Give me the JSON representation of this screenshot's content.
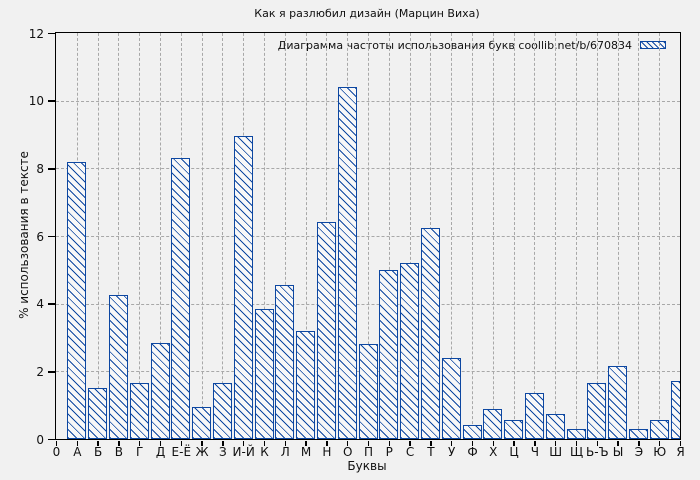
{
  "title": "Как я разлюбил дизайн (Марцин Виха)",
  "colors": {
    "background": "#f1f1f1",
    "bar_blue": "#0d47a1",
    "bar_fill": "#f8f8f8",
    "grid": "#a8a8a8",
    "axis": "#000000"
  },
  "chart_data": {
    "type": "bar",
    "title": "Как я разлюбил дизайн (Марцин Виха)",
    "legend": "Диаграмма частоты использования букв coollib.net/b/670834",
    "legend_position": "top-right-inside",
    "xlabel": "Буквы",
    "ylabel": "% использования в тексте",
    "ylim": [
      0,
      12
    ],
    "yticks": [
      0,
      2,
      4,
      6,
      8,
      10,
      12
    ],
    "grid": true,
    "grid_style": "dashed",
    "origin_tick": "0",
    "bar_style": "blue outline with diagonal hatch fill",
    "categories": [
      "А",
      "Б",
      "В",
      "Г",
      "Д",
      "Е-Ё",
      "Ж",
      "З",
      "И-Й",
      "К",
      "Л",
      "М",
      "Н",
      "О",
      "П",
      "Р",
      "С",
      "Т",
      "У",
      "Ф",
      "Х",
      "Ц",
      "Ч",
      "Ш",
      "Щ",
      "Ь-Ъ",
      "Ы",
      "Э",
      "Ю",
      "Я"
    ],
    "values": [
      8.2,
      1.5,
      4.25,
      1.65,
      2.85,
      8.3,
      0.95,
      1.65,
      8.95,
      3.85,
      4.55,
      3.2,
      6.4,
      10.4,
      2.8,
      5.0,
      5.2,
      6.25,
      2.4,
      0.4,
      0.9,
      0.55,
      1.35,
      0.75,
      0.3,
      1.65,
      2.15,
      0.3,
      0.55,
      1.7
    ]
  }
}
